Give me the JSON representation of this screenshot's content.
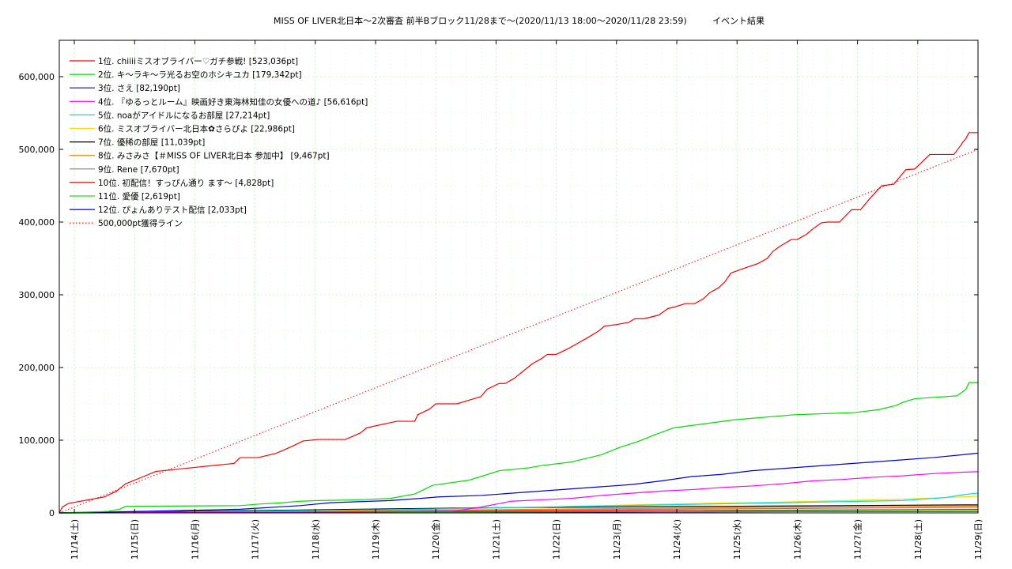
{
  "chart_data": {
    "type": "line",
    "title": "MISS OF LIVER北日本〜2次審査 前半Bブロック11/28まで〜(2020/11/13 18:00〜2020/11/28 23:59)",
    "title_right": "イベント結果",
    "xlabel": "",
    "ylabel": "",
    "xlim": [
      0,
      15.25
    ],
    "ylim": [
      0,
      650000
    ],
    "grid": true,
    "legend_position": "top-left",
    "x_tick_labels": [
      "11/14(土)",
      "11/15(日)",
      "11/16(月)",
      "11/17(火)",
      "11/18(水)",
      "11/19(木)",
      "11/20(金)",
      "11/21(土)",
      "11/22(日)",
      "11/23(月)",
      "11/24(火)",
      "11/25(水)",
      "11/26(木)",
      "11/27(金)",
      "11/28(土)",
      "11/29(日)"
    ],
    "x_ticks": [
      0.25,
      1.25,
      2.25,
      3.25,
      4.25,
      5.25,
      6.25,
      7.25,
      8.25,
      9.25,
      10.25,
      11.25,
      12.25,
      13.25,
      14.25,
      15.25
    ],
    "y_ticks": [
      0,
      100000,
      200000,
      300000,
      400000,
      500000,
      600000
    ],
    "y_tick_labels": [
      "0",
      "100,000",
      "200,000",
      "300,000",
      "400,000",
      "500,000",
      "600,000"
    ],
    "series": [
      {
        "name": "1位. chiiiiミスオブライバー♡ガチ参戦! [523,036pt]",
        "color": "#ff0000",
        "x": [
          0,
          0.05,
          0.15,
          0.75,
          0.95,
          1.1,
          1.4,
          1.6,
          2.3,
          2.9,
          3.0,
          3.3,
          3.6,
          3.85,
          4.05,
          4.3,
          4.75,
          5.0,
          5.1,
          5.6,
          5.9,
          5.95,
          6.15,
          6.25,
          6.6,
          7.0,
          7.1,
          7.3,
          7.4,
          7.55,
          7.7,
          7.85,
          8.0,
          8.1,
          8.25,
          8.45,
          8.6,
          8.75,
          8.95,
          9.05,
          9.25,
          9.45,
          9.55,
          9.7,
          9.95,
          10.1,
          10.2,
          10.4,
          10.55,
          10.7,
          10.8,
          10.95,
          11.05,
          11.15,
          11.35,
          11.6,
          11.75,
          11.85,
          11.95,
          12.15,
          12.25,
          12.4,
          12.5,
          12.65,
          12.75,
          12.95,
          13.15,
          13.3,
          13.45,
          13.65,
          13.85,
          14.05,
          14.2,
          14.45,
          14.6,
          14.85,
          14.95,
          15.0,
          15.05,
          15.1,
          15.25
        ],
        "values": [
          0,
          8000,
          13000,
          22000,
          30000,
          40000,
          50000,
          57000,
          63000,
          68000,
          76000,
          76000,
          82000,
          91000,
          99000,
          101000,
          101000,
          110000,
          117000,
          126000,
          126000,
          135000,
          143000,
          150000,
          150000,
          160000,
          170000,
          178000,
          178000,
          185000,
          195000,
          205000,
          212000,
          218000,
          218000,
          226000,
          233000,
          240000,
          250000,
          257000,
          259000,
          262000,
          267000,
          267000,
          272000,
          281000,
          283000,
          288000,
          288000,
          295000,
          303000,
          310000,
          318000,
          330000,
          336000,
          343000,
          350000,
          360000,
          366000,
          376000,
          376000,
          383000,
          390000,
          399000,
          400000,
          400000,
          417000,
          417000,
          432000,
          450000,
          452000,
          472000,
          473000,
          493000,
          493000,
          493000,
          504000,
          510000,
          515000,
          523036,
          523036
        ]
      },
      {
        "name": "2位. キ〜ラキ〜ラ光るお空のホシキユカ [179,342pt]",
        "color": "#00dd00",
        "x": [
          0,
          0.8,
          1.0,
          1.1,
          3.0,
          3.3,
          3.7,
          4.0,
          4.3,
          5.0,
          5.5,
          5.9,
          6.2,
          6.8,
          7.0,
          7.3,
          7.8,
          8.0,
          8.5,
          9.0,
          9.3,
          9.6,
          9.9,
          10.2,
          11.2,
          12.2,
          13.2,
          13.6,
          13.9,
          14.0,
          14.2,
          14.9,
          15.05,
          15.1,
          15.25
        ],
        "values": [
          0,
          2000,
          5000,
          9000,
          10000,
          12000,
          14000,
          16000,
          17000,
          18000,
          20000,
          26000,
          38000,
          45000,
          50000,
          58000,
          62000,
          65000,
          70000,
          80000,
          90000,
          98000,
          108000,
          117000,
          128000,
          135000,
          138000,
          142000,
          148000,
          152000,
          157000,
          161000,
          170000,
          179342,
          179342
        ]
      },
      {
        "name": "3位. さえ [82,190pt]",
        "color": "#0000dd",
        "x": [
          0,
          1.0,
          3.0,
          4.0,
          4.5,
          5.5,
          6.0,
          6.3,
          7.0,
          7.5,
          8.0,
          8.5,
          9.0,
          9.5,
          10.0,
          10.5,
          11.0,
          11.5,
          12.0,
          12.5,
          13.0,
          13.5,
          14.0,
          14.5,
          15.0,
          15.25
        ],
        "values": [
          0,
          1500,
          5000,
          10000,
          14000,
          17000,
          20000,
          22000,
          24000,
          27000,
          30000,
          33000,
          36000,
          39000,
          44000,
          50000,
          53000,
          58000,
          61000,
          64000,
          67000,
          70000,
          73000,
          76000,
          80000,
          82190
        ]
      },
      {
        "name": "4位. 『ゆるっとルーム』映画好き東海林知佳の女優への道♪ [56,616pt]",
        "color": "#ff00ff",
        "x": [
          0,
          6.5,
          7.0,
          7.5,
          8.0,
          8.5,
          9.0,
          9.5,
          10.0,
          10.5,
          11.0,
          11.5,
          12.0,
          12.5,
          13.0,
          13.5,
          14.0,
          14.5,
          15.0,
          15.25
        ],
        "values": [
          0,
          2000,
          8000,
          16000,
          18000,
          20000,
          24000,
          27000,
          30000,
          32000,
          35000,
          37000,
          40000,
          44000,
          46000,
          49000,
          51000,
          54000,
          56000,
          56616
        ]
      },
      {
        "name": "5位. noaがアイドルになるお部屋 [27,214pt]",
        "color": "#00dddd",
        "x": [
          0,
          2.0,
          4.0,
          6.0,
          8.0,
          10.0,
          12.0,
          14.0,
          14.7,
          15.0,
          15.25
        ],
        "values": [
          0,
          1000,
          3000,
          5000,
          8000,
          11000,
          14000,
          17000,
          21000,
          25000,
          27214
        ]
      },
      {
        "name": "6位. ミスオブライバー北日本✿さらぴよ [22,986pt]",
        "color": "#ffdd00",
        "x": [
          0,
          2.0,
          4.0,
          6.0,
          8.0,
          10.0,
          12.0,
          14.0,
          15.0,
          15.25
        ],
        "values": [
          0,
          1000,
          3000,
          5000,
          8000,
          12000,
          15000,
          19000,
          22000,
          22986
        ]
      },
      {
        "name": "7位. 優稀の部屋 [11,039pt]",
        "color": "#000000",
        "x": [
          0,
          1.0,
          3.0,
          5.0,
          7.0,
          9.0,
          11.0,
          13.0,
          15.0,
          15.25
        ],
        "values": [
          0,
          1000,
          3000,
          5000,
          7000,
          8000,
          9000,
          10000,
          11000,
          11039
        ]
      },
      {
        "name": "8位. みさみさ【＃MISS OF LIVER北日本 参加中】 [9,467pt]",
        "color": "#ff8000",
        "x": [
          0,
          2.0,
          5.0,
          8.0,
          11.0,
          14.0,
          15.25
        ],
        "values": [
          0,
          1000,
          3000,
          5000,
          7000,
          9000,
          9467
        ]
      },
      {
        "name": "9位. Rene [7,670pt]",
        "color": "#808080",
        "x": [
          0,
          2.0,
          5.0,
          8.0,
          11.0,
          14.0,
          15.25
        ],
        "values": [
          0,
          800,
          2500,
          4000,
          5500,
          7000,
          7670
        ]
      },
      {
        "name": "10位. 初配信！すっぴん通り ます〜 [4,828pt]",
        "color": "#ee0000",
        "x": [
          0,
          5.0,
          10.0,
          15.25
        ],
        "values": [
          0,
          1500,
          3000,
          4828
        ]
      },
      {
        "name": "11位. 愛優 [2,619pt]",
        "color": "#22dd22",
        "x": [
          0,
          5.0,
          10.0,
          15.25
        ],
        "values": [
          0,
          800,
          1800,
          2619
        ]
      },
      {
        "name": "12位. ぴょんありテスト配信 [2,033pt]",
        "color": "#0000cc",
        "x": [
          0,
          5.0,
          10.0,
          15.25
        ],
        "values": [
          0,
          600,
          1400,
          2033
        ]
      },
      {
        "name": "500,000pt獲得ライン",
        "color": "#ff0000",
        "dashed": true,
        "x": [
          0,
          15.25
        ],
        "values": [
          0,
          500000
        ]
      }
    ]
  }
}
